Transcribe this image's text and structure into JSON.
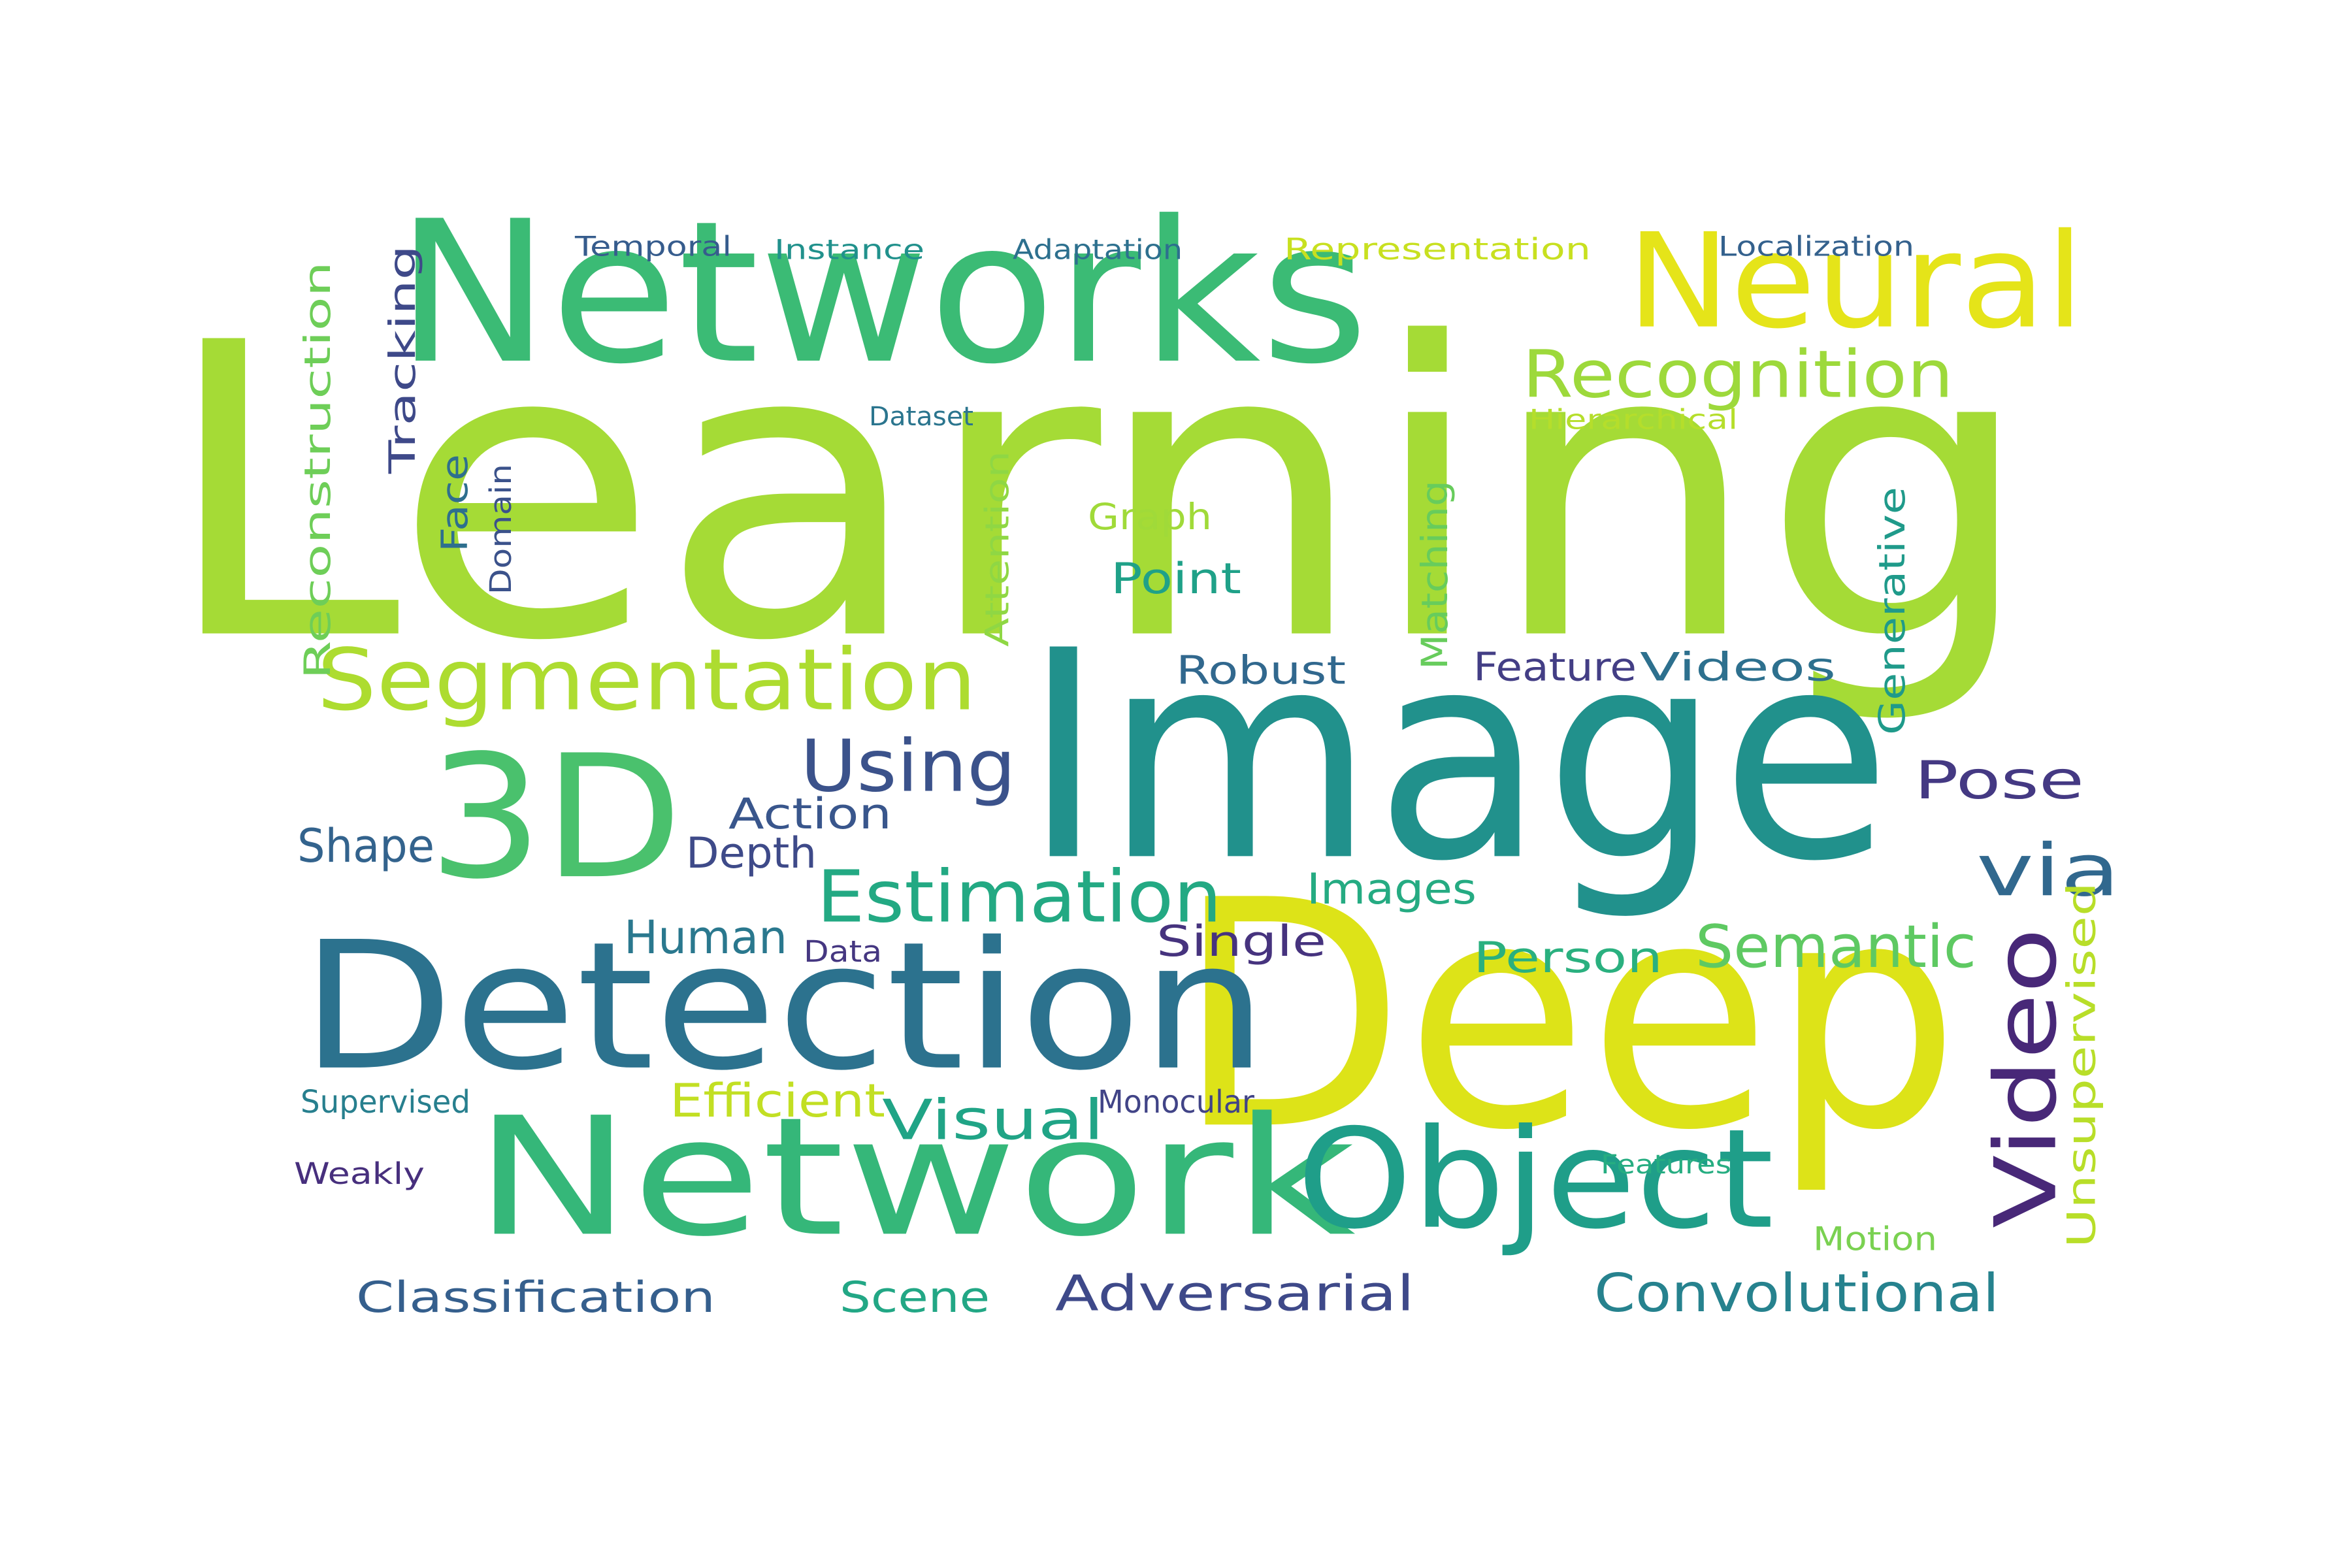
{
  "words": [
    {
      "text": "Learning",
      "color": "#a5db36"
    },
    {
      "text": "Image",
      "color": "#21918c"
    },
    {
      "text": "Deep",
      "color": "#dde318"
    },
    {
      "text": "Networks",
      "color": "#3bbb75"
    },
    {
      "text": "Detection",
      "color": "#2c728e"
    },
    {
      "text": "Network",
      "color": "#35b779"
    },
    {
      "text": "Neural",
      "color": "#e5e419"
    },
    {
      "text": "Object",
      "color": "#1f9e89"
    },
    {
      "text": "3D",
      "color": "#4ac16d"
    },
    {
      "text": "Segmentation",
      "color": "#addc30"
    },
    {
      "text": "Recognition",
      "color": "#9dd93b"
    },
    {
      "text": "Video",
      "color": "#482878"
    },
    {
      "text": "Estimation",
      "color": "#23a983"
    },
    {
      "text": "Convolutional",
      "color": "#26828e"
    },
    {
      "text": "Adversarial",
      "color": "#3e4989"
    },
    {
      "text": "Semantic",
      "color": "#5ec962"
    },
    {
      "text": "Visual",
      "color": "#20a486"
    },
    {
      "text": "Using",
      "color": "#3b528b"
    },
    {
      "text": "via",
      "color": "#31688e"
    },
    {
      "text": "Unsupervised",
      "color": "#b8de29"
    },
    {
      "text": "Pose",
      "color": "#443983"
    },
    {
      "text": "Classification",
      "color": "#355f8d"
    },
    {
      "text": "Scene",
      "color": "#22a785"
    },
    {
      "text": "Human",
      "color": "#2a788e"
    },
    {
      "text": "Depth",
      "color": "#3e4a89"
    },
    {
      "text": "Shape",
      "color": "#33638d"
    },
    {
      "text": "Efficient",
      "color": "#c2df23"
    },
    {
      "text": "Person",
      "color": "#2ab07f"
    },
    {
      "text": "Images",
      "color": "#25ab82"
    },
    {
      "text": "Single",
      "color": "#46337e"
    },
    {
      "text": "Action",
      "color": "#39568c"
    },
    {
      "text": "Point",
      "color": "#1fa188"
    },
    {
      "text": "Feature",
      "color": "#433e85"
    },
    {
      "text": "Videos",
      "color": "#2d708e"
    },
    {
      "text": "Robust",
      "color": "#31688e"
    },
    {
      "text": "Graph",
      "color": "#a0da39"
    },
    {
      "text": "Matching",
      "color": "#67cc5c"
    },
    {
      "text": "Reconstruction",
      "color": "#6ece58"
    },
    {
      "text": "Tracking",
      "color": "#3e4989"
    },
    {
      "text": "Face",
      "color": "#2e6f8e"
    },
    {
      "text": "Generative",
      "color": "#1f9a8a"
    },
    {
      "text": "Motion",
      "color": "#7ad151"
    },
    {
      "text": "Attention",
      "color": "#8fd744"
    },
    {
      "text": "Representation",
      "color": "#c8e020"
    },
    {
      "text": "Localization",
      "color": "#34618d"
    },
    {
      "text": "Adaptation",
      "color": "#2d708e"
    },
    {
      "text": "Instance",
      "color": "#21918c"
    },
    {
      "text": "Temporal",
      "color": "#365c8d"
    },
    {
      "text": "Supervised",
      "color": "#277f8e"
    },
    {
      "text": "Monocular",
      "color": "#414487"
    },
    {
      "text": "Dataset",
      "color": "#2b758e"
    },
    {
      "text": "Hierarchical",
      "color": "#b5de2b"
    },
    {
      "text": "Weakly",
      "color": "#472f7d"
    },
    {
      "text": "Domain",
      "color": "#3b528b"
    },
    {
      "text": "Features",
      "color": "#26ad81"
    },
    {
      "text": "Data",
      "color": "#453781"
    }
  ],
  "colors": {
    "background": "#ffffff"
  }
}
